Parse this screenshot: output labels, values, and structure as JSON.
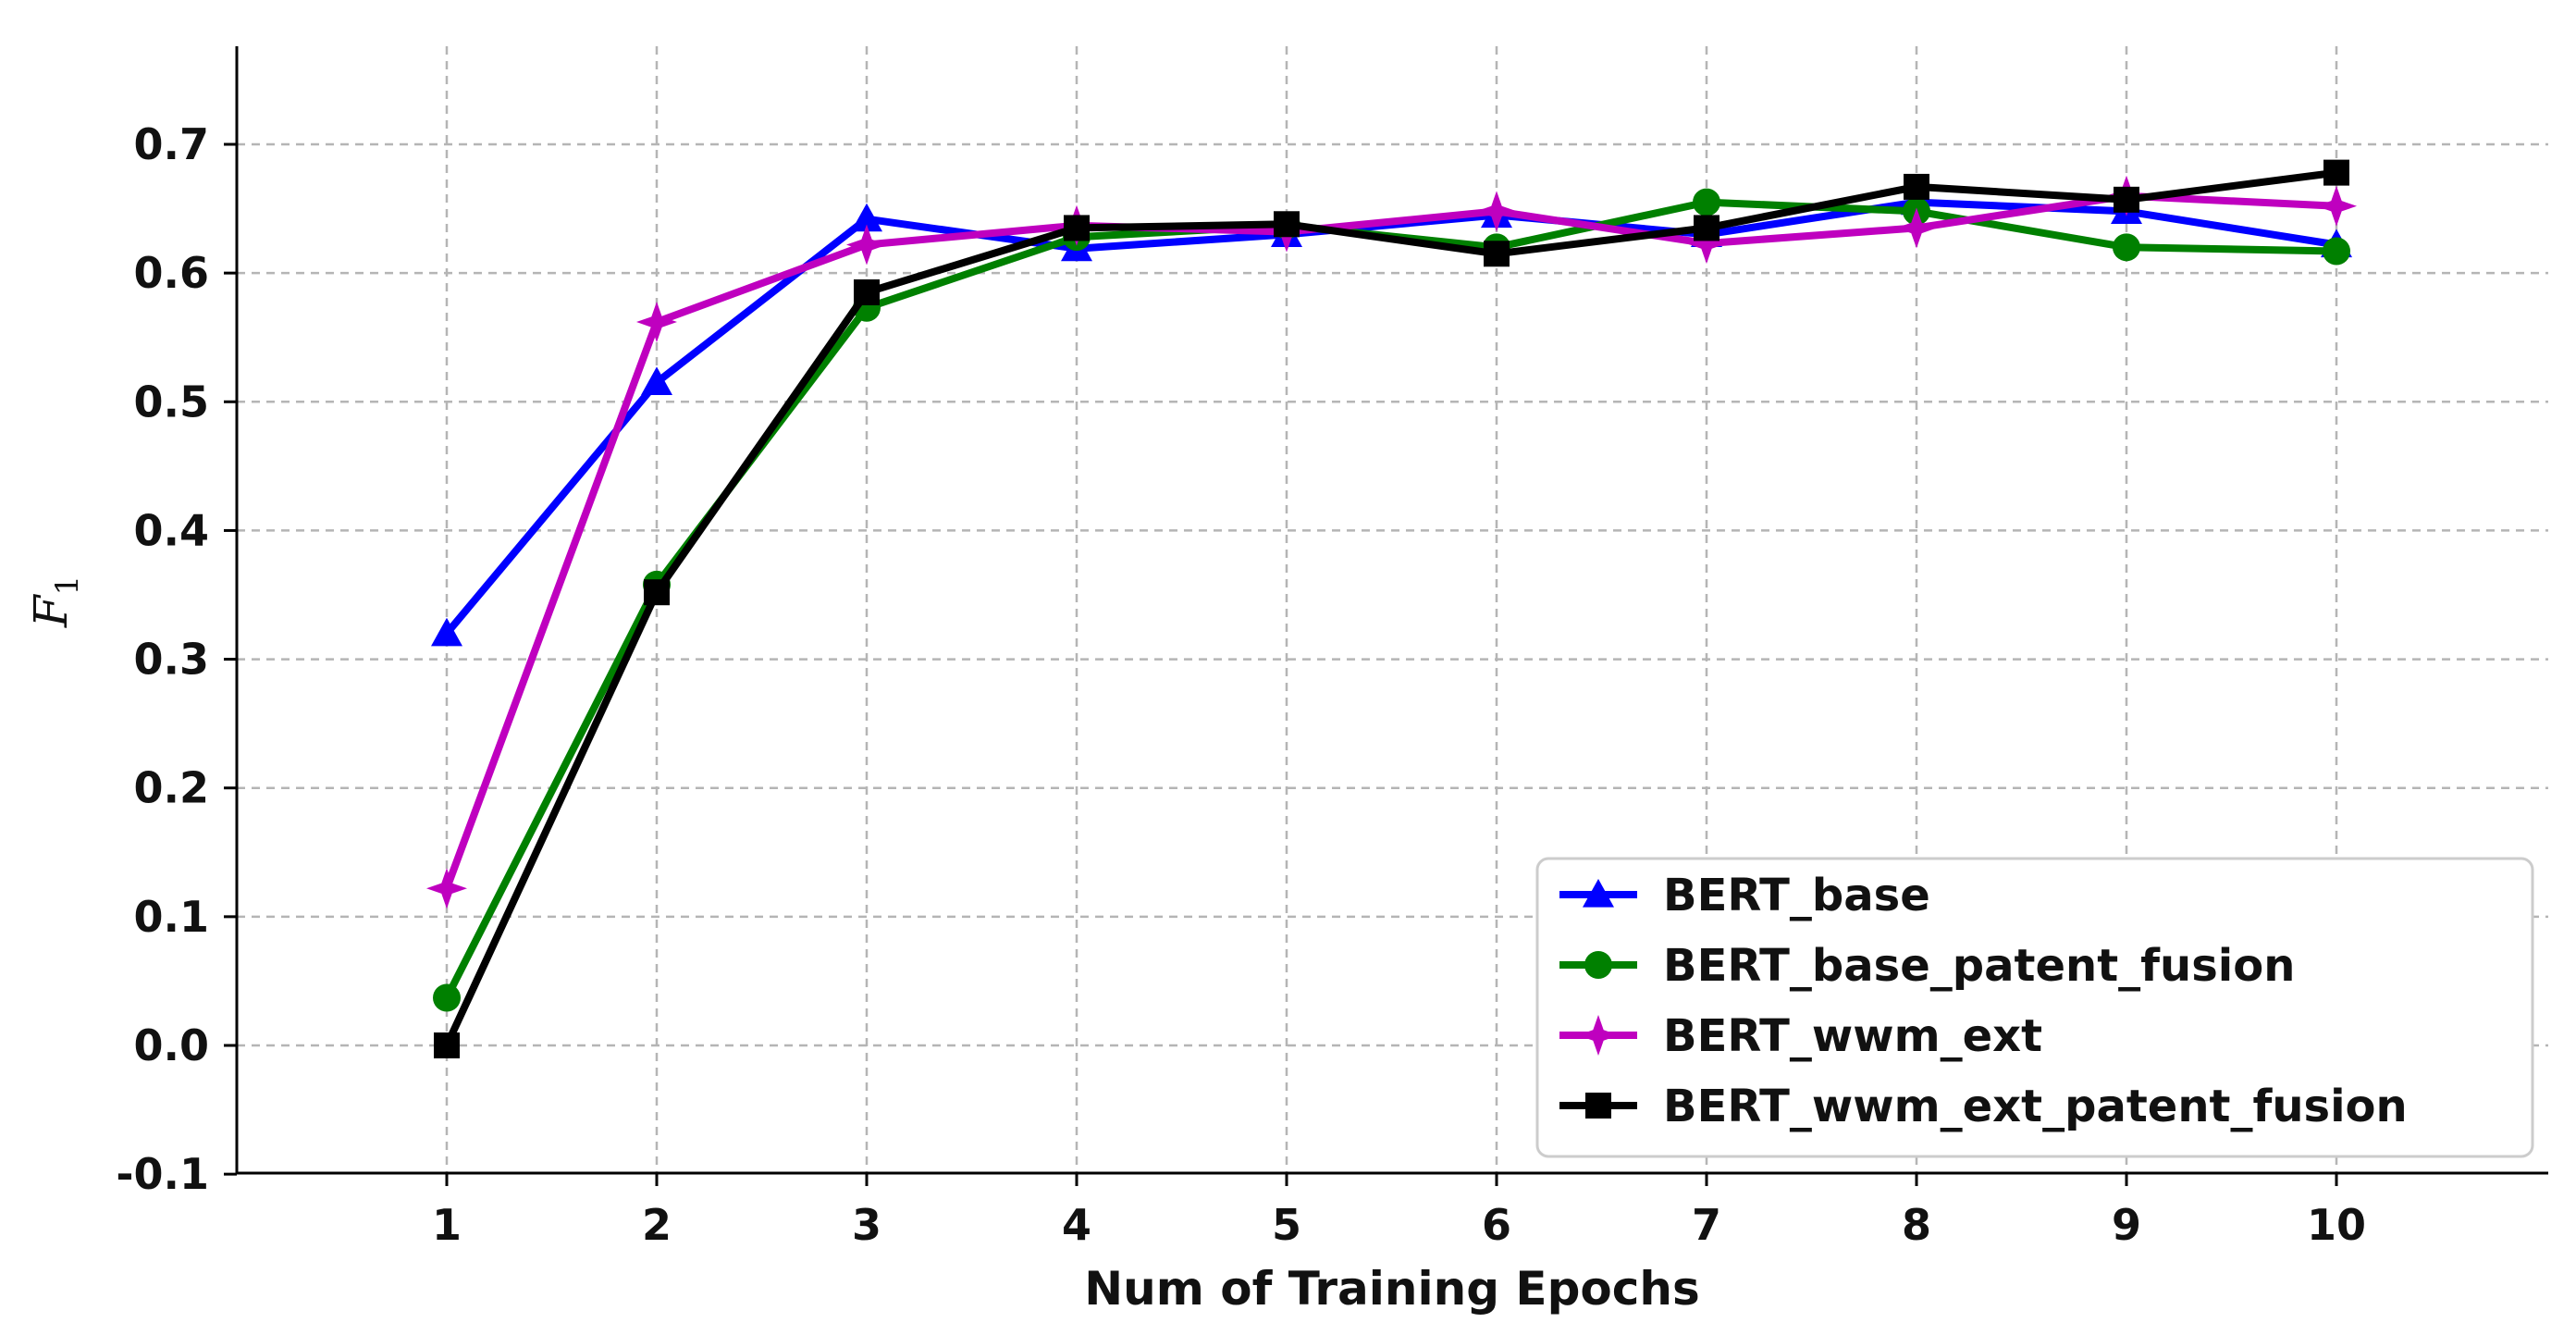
{
  "chart_data": {
    "type": "line",
    "title": "",
    "xlabel": "Num of Training Epochs",
    "ylabel": "F",
    "ylabel_subscript": "1",
    "x": [
      1,
      2,
      3,
      4,
      5,
      6,
      7,
      8,
      9,
      10
    ],
    "xlim": [
      0,
      11
    ],
    "ylim": [
      -0.1,
      0.78
    ],
    "xticks": [
      "1",
      "2",
      "3",
      "4",
      "5",
      "6",
      "7",
      "8",
      "9",
      "10"
    ],
    "yticks": [
      -0.1,
      0.0,
      0.1,
      0.2,
      0.3,
      0.4,
      0.5,
      0.6,
      0.7
    ],
    "ytick_labels": [
      "-0.1",
      "0.0",
      "0.1",
      "0.2",
      "0.3",
      "0.4",
      "0.5",
      "0.6",
      "0.7"
    ],
    "grid": true,
    "legend_position": "bottom-right",
    "series": [
      {
        "name": "BERT_base",
        "color": "#0000ff",
        "marker": "triangle",
        "values": [
          0.32,
          0.515,
          0.642,
          0.619,
          0.63,
          0.645,
          0.63,
          0.655,
          0.648,
          0.622
        ]
      },
      {
        "name": "BERT_base_patent_fusion",
        "color": "#008000",
        "marker": "circle",
        "values": [
          0.037,
          0.358,
          0.573,
          0.628,
          0.637,
          0.62,
          0.655,
          0.648,
          0.62,
          0.617
        ]
      },
      {
        "name": "BERT_wwm_ext",
        "color": "#bf00bf",
        "marker": "star",
        "values": [
          0.122,
          0.562,
          0.622,
          0.637,
          0.632,
          0.648,
          0.623,
          0.635,
          0.66,
          0.652
        ]
      },
      {
        "name": "BERT_wwm_ext_patent_fusion",
        "color": "#000000",
        "marker": "square",
        "values": [
          0.0,
          0.352,
          0.585,
          0.635,
          0.638,
          0.615,
          0.635,
          0.667,
          0.657,
          0.678
        ]
      }
    ]
  }
}
